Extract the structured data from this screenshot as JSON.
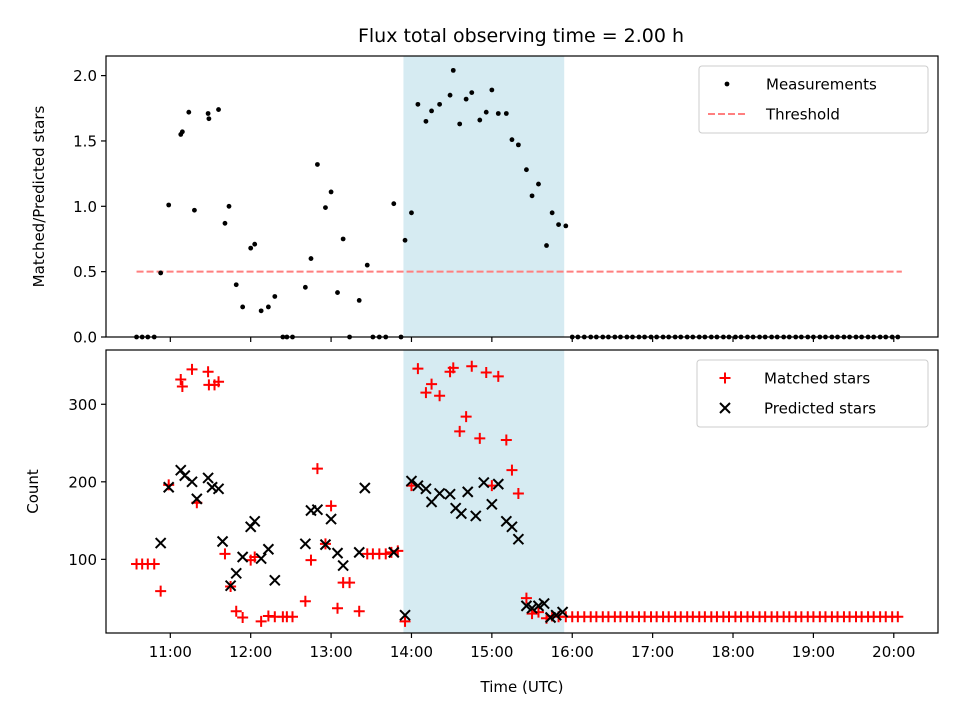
{
  "title": "Flux total observing time = 2.00 h",
  "colors": {
    "measurement": "#000000",
    "threshold": "#ff7f7f",
    "matched": "#ff0000",
    "predicted": "#000000",
    "highlight": "#add8e6"
  },
  "chart_data": [
    {
      "type": "scatter",
      "ylabel": "Matched/Predicted stars",
      "xlim": [
        10.2,
        20.55
      ],
      "ylim": [
        0,
        2.15
      ],
      "yticks": [
        0.0,
        0.5,
        1.0,
        1.5,
        2.0
      ],
      "ytick_labels": [
        "0.0",
        "0.5",
        "1.0",
        "1.5",
        "2.0"
      ],
      "xticks": [
        11,
        12,
        13,
        14,
        15,
        16,
        17,
        18,
        19,
        20
      ],
      "highlight_span": [
        13.9,
        15.9
      ],
      "legend": {
        "placement": "top-right",
        "entries": [
          "Measurements",
          "Threshold"
        ]
      },
      "threshold": {
        "name": "Threshold",
        "y": 0.5,
        "x": [
          10.58,
          20.1
        ]
      },
      "series": [
        {
          "name": "Measurements",
          "marker": "dot",
          "x": [
            10.58,
            10.65,
            10.72,
            10.8,
            10.88,
            10.98,
            11.13,
            11.15,
            11.23,
            11.3,
            11.47,
            11.48,
            11.6,
            11.68,
            11.73,
            11.82,
            11.9,
            12.0,
            12.05,
            12.13,
            12.22,
            12.3,
            12.4,
            12.45,
            12.52,
            12.68,
            12.75,
            12.83,
            12.93,
            13.0,
            13.08,
            13.15,
            13.23,
            13.35,
            13.45,
            13.52,
            13.6,
            13.68,
            13.78,
            13.87,
            13.92,
            14.0,
            14.08,
            14.18,
            14.25,
            14.35,
            14.48,
            14.52,
            14.6,
            14.68,
            14.75,
            14.85,
            14.93,
            15.0,
            15.08,
            15.18,
            15.25,
            15.33,
            15.43,
            15.5,
            15.58,
            15.68,
            15.75,
            15.83,
            15.92,
            16.0,
            16.07,
            16.15,
            16.23,
            16.3,
            16.38,
            16.45,
            16.53,
            16.6,
            16.68,
            16.75,
            16.83,
            16.9,
            16.98,
            17.05,
            17.13,
            17.2,
            17.28,
            17.35,
            17.43,
            17.5,
            17.58,
            17.65,
            17.73,
            17.8,
            17.88,
            17.95,
            18.03,
            18.1,
            18.18,
            18.25,
            18.33,
            18.4,
            18.48,
            18.55,
            18.63,
            18.7,
            18.78,
            18.85,
            18.93,
            19.0,
            19.08,
            19.15,
            19.23,
            19.3,
            19.38,
            19.45,
            19.53,
            19.6,
            19.68,
            19.75,
            19.83,
            19.9,
            19.98,
            20.05
          ],
          "y": [
            0.0,
            0.0,
            0.0,
            0.0,
            0.49,
            1.01,
            1.55,
            1.57,
            1.72,
            0.97,
            1.71,
            1.67,
            1.74,
            0.87,
            1.0,
            0.4,
            0.23,
            0.68,
            0.71,
            0.2,
            0.23,
            0.31,
            0.0,
            0.0,
            0.0,
            0.38,
            0.6,
            1.32,
            0.99,
            1.11,
            0.34,
            0.75,
            0.0,
            0.28,
            0.55,
            0.0,
            0.0,
            0.0,
            1.02,
            0.0,
            0.74,
            0.95,
            1.78,
            1.65,
            1.73,
            1.78,
            1.85,
            2.04,
            1.63,
            1.82,
            1.87,
            1.66,
            1.72,
            1.89,
            1.71,
            1.71,
            1.51,
            1.47,
            1.28,
            1.08,
            1.17,
            0.7,
            0.95,
            0.86,
            0.85,
            0.0,
            0.0,
            0.0,
            0.0,
            0.0,
            0.0,
            0.0,
            0.0,
            0.0,
            0.0,
            0.0,
            0.0,
            0.0,
            0.0,
            0.0,
            0.0,
            0.0,
            0.0,
            0.0,
            0.0,
            0.0,
            0.0,
            0.0,
            0.0,
            0.0,
            0.0,
            0.0,
            0.0,
            0.0,
            0.0,
            0.0,
            0.0,
            0.0,
            0.0,
            0.0,
            0.0,
            0.0,
            0.0,
            0.0,
            0.0,
            0.0,
            0.0,
            0.0,
            0.0,
            0.0,
            0.0,
            0.0,
            0.0,
            0.0,
            0.0,
            0.0,
            0.0,
            0.0,
            0.0,
            0.0
          ]
        }
      ]
    },
    {
      "type": "scatter",
      "title": "",
      "ylabel": "Count",
      "xlabel": "Time (UTC)",
      "xlim": [
        10.2,
        20.55
      ],
      "ylim": [
        5,
        370
      ],
      "yticks": [
        100,
        200,
        300
      ],
      "ytick_labels": [
        "100",
        "200",
        "300"
      ],
      "xticks": [
        11,
        12,
        13,
        14,
        15,
        16,
        17,
        18,
        19,
        20
      ],
      "xtick_labels": [
        "11:00",
        "12:00",
        "13:00",
        "14:00",
        "15:00",
        "16:00",
        "17:00",
        "18:00",
        "19:00",
        "20:00"
      ],
      "highlight_span": [
        13.9,
        15.9
      ],
      "legend": {
        "placement": "top-right",
        "entries": [
          "Matched stars",
          "Predicted stars"
        ]
      },
      "series": [
        {
          "name": "Matched stars",
          "marker": "plus",
          "x": [
            10.58,
            10.65,
            10.72,
            10.8,
            10.88,
            10.98,
            11.13,
            11.15,
            11.27,
            11.33,
            11.47,
            11.48,
            11.55,
            11.6,
            11.68,
            11.75,
            11.82,
            11.9,
            12.0,
            12.05,
            12.13,
            12.22,
            12.3,
            12.4,
            12.45,
            12.52,
            12.68,
            12.75,
            12.83,
            12.93,
            13.0,
            13.08,
            13.15,
            13.23,
            13.35,
            13.45,
            13.52,
            13.6,
            13.68,
            13.75,
            13.83,
            13.92,
            14.0,
            14.08,
            14.18,
            14.25,
            14.35,
            14.48,
            14.52,
            14.6,
            14.68,
            14.75,
            14.85,
            14.93,
            15.0,
            15.08,
            15.18,
            15.25,
            15.33,
            15.43,
            15.5,
            15.58,
            15.68,
            15.75,
            15.83,
            15.92,
            16.0,
            16.07,
            16.15,
            16.23,
            16.3,
            16.38,
            16.45,
            16.53,
            16.6,
            16.68,
            16.75,
            16.83,
            16.9,
            16.98,
            17.05,
            17.13,
            17.2,
            17.28,
            17.35,
            17.43,
            17.5,
            17.58,
            17.65,
            17.73,
            17.8,
            17.88,
            17.95,
            18.03,
            18.1,
            18.18,
            18.25,
            18.33,
            18.4,
            18.48,
            18.55,
            18.63,
            18.7,
            18.78,
            18.85,
            18.93,
            19.0,
            19.08,
            19.15,
            19.23,
            19.3,
            19.38,
            19.45,
            19.53,
            19.6,
            19.68,
            19.75,
            19.83,
            19.9,
            19.98,
            20.05
          ],
          "y": [
            94,
            94,
            94,
            94,
            59,
            196,
            332,
            323,
            345,
            173,
            342,
            325,
            325,
            329,
            107,
            65,
            33,
            25,
            99,
            103,
            20,
            27,
            26,
            26,
            26,
            26,
            46,
            99,
            217,
            120,
            169,
            37,
            70,
            70,
            33,
            107,
            107,
            107,
            107,
            109,
            111,
            20,
            195,
            346,
            315,
            326,
            311,
            342,
            347,
            265,
            284,
            349,
            256,
            341,
            195,
            336,
            254,
            215,
            185,
            50,
            30,
            32,
            24,
            27,
            26,
            26,
            26,
            26,
            26,
            26,
            26,
            26,
            26,
            26,
            26,
            26,
            26,
            26,
            26,
            26,
            26,
            26,
            26,
            26,
            26,
            26,
            26,
            26,
            26,
            26,
            26,
            26,
            26,
            26,
            26,
            26,
            26,
            26,
            26,
            26,
            26,
            26,
            26,
            26,
            26,
            26,
            26,
            26,
            26,
            26,
            26,
            26,
            26,
            26,
            26,
            26,
            26,
            26,
            26,
            26,
            26
          ]
        },
        {
          "name": "Predicted stars",
          "marker": "x",
          "x": [
            10.88,
            10.98,
            11.13,
            11.18,
            11.27,
            11.33,
            11.47,
            11.52,
            11.6,
            11.65,
            11.75,
            11.82,
            11.9,
            12.0,
            12.05,
            12.13,
            12.22,
            12.3,
            12.68,
            12.75,
            12.83,
            12.93,
            13.0,
            13.08,
            13.15,
            13.35,
            13.42,
            13.78,
            13.92,
            14.0,
            14.08,
            14.18,
            14.25,
            14.35,
            14.48,
            14.55,
            14.62,
            14.7,
            14.8,
            14.9,
            15.0,
            15.08,
            15.18,
            15.25,
            15.33,
            15.43,
            15.5,
            15.58,
            15.65,
            15.73,
            15.8,
            15.88
          ],
          "y": [
            121,
            193,
            215,
            208,
            200,
            178,
            205,
            193,
            191,
            123,
            66,
            82,
            103,
            142,
            149,
            101,
            113,
            73,
            120,
            163,
            164,
            119,
            152,
            108,
            92,
            109,
            192,
            109,
            28,
            201,
            195,
            191,
            174,
            185,
            184,
            166,
            159,
            187,
            156,
            199,
            171,
            197,
            149,
            142,
            126,
            40,
            37,
            40,
            43,
            25,
            28,
            32
          ]
        }
      ]
    }
  ]
}
